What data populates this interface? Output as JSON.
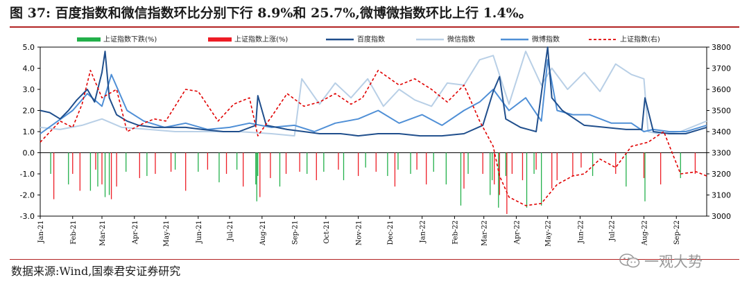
{
  "figure": {
    "title": "图 37:  百度指数和微信指数环比分别下行 8.9%和 25.7%,微博微指数环比上行 1.4%。",
    "source": "数据来源:Wind,国泰君安证券研究",
    "watermark": "一观大势",
    "watermark_icon": "wechat-bubble-icon"
  },
  "colors": {
    "title_rule": "#b22222",
    "bar_down": "#22b04a",
    "bar_up": "#ee1c25",
    "baidu": "#1f4e8c",
    "weixin": "#b8cfe6",
    "weibo": "#4f8fd6",
    "sh_index": "#e00000"
  },
  "chart_data": {
    "type": "line",
    "x_range": [
      "2021-01-01",
      "2022-09-30"
    ],
    "x_tick_labels": [
      "Jan-21",
      "Feb-21",
      "Mar-21",
      "Apr-21",
      "May-21",
      "Jun-21",
      "Jul-21",
      "Aug-21",
      "Sep-21",
      "Oct-21",
      "Nov-21",
      "Dec-21",
      "Jan-22",
      "Feb-22",
      "Mar-22",
      "Apr-22",
      "May-22",
      "Jun-22",
      "Jul-22",
      "Aug-22",
      "Sep-22"
    ],
    "y_left": {
      "min": -3.0,
      "max": 5.0,
      "ticks": [
        "-3.0",
        "-2.0",
        "-1.0",
        "0.0",
        "1.0",
        "2.0",
        "3.0",
        "4.0",
        "5.0"
      ]
    },
    "y_right": {
      "min": 3000,
      "max": 3800,
      "ticks": [
        "3000",
        "3100",
        "3200",
        "3300",
        "3400",
        "3500",
        "3600",
        "3700",
        "3800"
      ]
    },
    "legend": {
      "placement": "top",
      "entries": [
        "上证指数下跌(%)",
        "上证指数上涨(%)",
        "百度指数",
        "微信指数",
        "微博指数",
        "上证指数(右)"
      ]
    },
    "series": [
      {
        "name": "上证指数下跌(%)",
        "type": "bar",
        "axis": "left",
        "x": [
          "2021-01-11",
          "2021-01-28",
          "2021-02-18",
          "2021-02-25",
          "2021-03-04",
          "2021-03-08",
          "2021-03-24",
          "2021-04-13",
          "2021-05-10",
          "2021-06-01",
          "2021-06-21",
          "2021-07-08",
          "2021-07-26",
          "2021-07-27",
          "2021-07-28",
          "2021-08-18",
          "2021-09-13",
          "2021-09-29",
          "2021-10-18",
          "2021-11-08",
          "2021-11-29",
          "2021-12-09",
          "2021-12-21",
          "2022-01-12",
          "2022-01-24",
          "2022-02-07",
          "2022-02-14",
          "2022-03-07",
          "2022-03-09",
          "2022-03-15",
          "2022-03-22",
          "2022-04-11",
          "2022-04-18",
          "2022-04-25",
          "2022-06-13",
          "2022-07-15",
          "2022-08-02",
          "2022-09-05"
        ],
        "values": [
          -1.0,
          -1.5,
          -1.8,
          -1.6,
          -2.1,
          -2.0,
          -0.9,
          -1.1,
          -0.8,
          -0.9,
          -1.4,
          -0.8,
          -1.5,
          -2.3,
          -1.1,
          -1.6,
          -1.0,
          -0.9,
          -1.3,
          -0.7,
          -1.1,
          -0.8,
          -1.0,
          -0.9,
          -1.5,
          -2.5,
          -1.0,
          -2.0,
          -1.3,
          -2.6,
          -1.1,
          -2.6,
          -1.0,
          -2.5,
          -1.1,
          -1.6,
          -2.3,
          -1.2
        ]
      },
      {
        "name": "上证指数上涨(%)",
        "type": "bar",
        "axis": "left",
        "x": [
          "2021-01-14",
          "2021-02-01",
          "2021-02-08",
          "2021-02-23",
          "2021-03-01",
          "2021-03-10",
          "2021-03-15",
          "2021-04-06",
          "2021-04-21",
          "2021-05-06",
          "2021-05-20",
          "2021-06-10",
          "2021-06-28",
          "2021-07-14",
          "2021-07-30",
          "2021-08-09",
          "2021-08-24",
          "2021-09-06",
          "2021-09-22",
          "2021-10-13",
          "2021-11-01",
          "2021-11-18",
          "2021-12-06",
          "2021-12-27",
          "2022-01-05",
          "2022-02-10",
          "2022-02-28",
          "2022-03-11",
          "2022-03-16",
          "2022-03-23",
          "2022-03-28",
          "2022-04-07",
          "2022-04-20",
          "2022-05-05",
          "2022-05-10",
          "2022-05-25",
          "2022-06-02",
          "2022-07-05",
          "2022-08-01",
          "2022-08-17",
          "2022-09-19"
        ],
        "values": [
          -2.2,
          -1.0,
          -1.8,
          -0.8,
          -1.5,
          -2.2,
          -1.6,
          -1.2,
          -1.0,
          -0.9,
          -1.8,
          -0.8,
          -1.0,
          -1.6,
          -2.1,
          -1.2,
          -1.0,
          -0.9,
          -1.3,
          -0.8,
          -1.1,
          -0.9,
          -1.6,
          -0.8,
          -1.5,
          -1.7,
          -1.0,
          -1.5,
          -2.0,
          -2.9,
          -1.0,
          -1.3,
          -0.8,
          -1.7,
          -1.3,
          -1.1,
          -0.7,
          -1.0,
          -1.2,
          -1.5,
          -1.0
        ]
      },
      {
        "name": "百度指数",
        "axis": "left",
        "x": [
          "2021-01-01",
          "2021-01-10",
          "2021-01-20",
          "2021-01-28",
          "2021-02-05",
          "2021-02-15",
          "2021-02-22",
          "2021-03-01",
          "2021-03-04",
          "2021-03-08",
          "2021-03-15",
          "2021-03-25",
          "2021-04-05",
          "2021-04-20",
          "2021-05-05",
          "2021-05-20",
          "2021-06-05",
          "2021-06-25",
          "2021-07-10",
          "2021-07-26",
          "2021-07-28",
          "2021-08-05",
          "2021-08-25",
          "2021-09-10",
          "2021-09-25",
          "2021-10-15",
          "2021-11-01",
          "2021-11-20",
          "2021-12-10",
          "2021-12-30",
          "2022-01-20",
          "2022-02-10",
          "2022-02-28",
          "2022-03-10",
          "2022-03-16",
          "2022-03-22",
          "2022-04-05",
          "2022-04-20",
          "2022-05-01",
          "2022-05-05",
          "2022-05-15",
          "2022-06-05",
          "2022-06-25",
          "2022-07-15",
          "2022-07-30",
          "2022-08-02",
          "2022-08-10",
          "2022-08-25",
          "2022-09-10",
          "2022-09-30"
        ],
        "values": [
          2.0,
          1.9,
          1.6,
          2.0,
          2.5,
          3.0,
          2.4,
          3.8,
          4.8,
          2.6,
          1.8,
          1.5,
          1.3,
          1.2,
          1.2,
          1.2,
          1.1,
          1.0,
          1.0,
          1.3,
          2.7,
          1.3,
          1.1,
          1.0,
          0.9,
          0.9,
          0.8,
          0.9,
          0.9,
          0.8,
          0.8,
          0.9,
          1.3,
          2.9,
          3.6,
          1.6,
          1.2,
          1.0,
          5.0,
          2.6,
          2.0,
          1.3,
          1.2,
          1.1,
          1.1,
          2.6,
          1.0,
          0.9,
          0.9,
          1.2
        ]
      },
      {
        "name": "微信指数",
        "axis": "left",
        "x": [
          "2021-01-01",
          "2021-01-20",
          "2021-02-10",
          "2021-03-01",
          "2021-03-20",
          "2021-04-15",
          "2021-05-10",
          "2021-06-10",
          "2021-07-10",
          "2021-08-10",
          "2021-09-01",
          "2021-09-08",
          "2021-09-25",
          "2021-10-10",
          "2021-10-25",
          "2021-11-10",
          "2021-11-25",
          "2021-12-10",
          "2021-12-25",
          "2022-01-10",
          "2022-01-25",
          "2022-02-10",
          "2022-02-25",
          "2022-03-10",
          "2022-03-25",
          "2022-04-10",
          "2022-04-25",
          "2022-05-05",
          "2022-05-20",
          "2022-06-05",
          "2022-06-20",
          "2022-07-05",
          "2022-07-20",
          "2022-08-01",
          "2022-08-05",
          "2022-08-15",
          "2022-09-05",
          "2022-09-30"
        ],
        "values": [
          1.2,
          1.1,
          1.3,
          1.6,
          1.2,
          1.1,
          1.0,
          1.0,
          1.0,
          0.9,
          0.8,
          3.5,
          2.3,
          3.3,
          2.6,
          3.5,
          2.2,
          3.0,
          2.5,
          2.2,
          3.3,
          3.2,
          4.4,
          4.6,
          2.3,
          4.8,
          3.2,
          4.0,
          3.0,
          3.8,
          2.9,
          4.2,
          3.7,
          3.5,
          1.0,
          0.9,
          1.0,
          1.5
        ]
      },
      {
        "name": "微博指数",
        "axis": "left",
        "x": [
          "2021-01-01",
          "2021-01-15",
          "2021-02-01",
          "2021-02-15",
          "2021-03-01",
          "2021-03-10",
          "2021-03-25",
          "2021-04-10",
          "2021-04-30",
          "2021-05-20",
          "2021-06-10",
          "2021-07-01",
          "2021-07-20",
          "2021-08-10",
          "2021-09-01",
          "2021-09-20",
          "2021-10-10",
          "2021-11-01",
          "2021-11-20",
          "2021-12-10",
          "2022-01-01",
          "2022-01-20",
          "2022-02-10",
          "2022-02-25",
          "2022-03-10",
          "2022-03-25",
          "2022-04-10",
          "2022-04-25",
          "2022-05-01",
          "2022-05-10",
          "2022-05-25",
          "2022-06-10",
          "2022-07-01",
          "2022-07-20",
          "2022-08-01",
          "2022-08-10",
          "2022-08-25",
          "2022-09-10",
          "2022-09-30"
        ],
        "values": [
          0.9,
          1.4,
          2.0,
          2.8,
          2.2,
          3.7,
          2.0,
          1.5,
          1.2,
          1.4,
          1.1,
          1.2,
          1.4,
          1.2,
          1.3,
          1.0,
          1.4,
          1.6,
          2.0,
          1.4,
          1.8,
          1.3,
          2.0,
          2.4,
          3.0,
          2.0,
          2.6,
          1.5,
          4.4,
          2.0,
          1.8,
          1.8,
          1.4,
          1.4,
          1.0,
          1.1,
          1.0,
          1.0,
          1.3
        ]
      },
      {
        "name": "上证指数(右)",
        "axis": "right",
        "x": [
          "2021-01-01",
          "2021-01-20",
          "2021-02-01",
          "2021-02-10",
          "2021-02-18",
          "2021-03-01",
          "2021-03-15",
          "2021-03-25",
          "2021-04-10",
          "2021-04-20",
          "2021-05-01",
          "2021-05-20",
          "2021-06-01",
          "2021-06-20",
          "2021-07-05",
          "2021-07-20",
          "2021-07-28",
          "2021-08-10",
          "2021-08-25",
          "2021-09-10",
          "2021-09-25",
          "2021-10-10",
          "2021-10-25",
          "2021-11-05",
          "2021-11-20",
          "2021-12-10",
          "2021-12-25",
          "2022-01-10",
          "2022-01-25",
          "2022-02-10",
          "2022-02-25",
          "2022-03-10",
          "2022-03-16",
          "2022-03-25",
          "2022-04-10",
          "2022-04-25",
          "2022-05-10",
          "2022-05-25",
          "2022-06-05",
          "2022-06-20",
          "2022-07-05",
          "2022-07-20",
          "2022-08-05",
          "2022-08-20",
          "2022-09-05",
          "2022-09-20",
          "2022-09-30"
        ],
        "values": [
          3350,
          3450,
          3420,
          3530,
          3690,
          3560,
          3600,
          3400,
          3440,
          3460,
          3450,
          3600,
          3590,
          3450,
          3530,
          3560,
          3380,
          3470,
          3580,
          3520,
          3540,
          3580,
          3530,
          3560,
          3690,
          3620,
          3650,
          3600,
          3540,
          3620,
          3450,
          3330,
          3190,
          3090,
          3050,
          3060,
          3150,
          3190,
          3200,
          3270,
          3230,
          3330,
          3350,
          3400,
          3200,
          3210,
          3190
        ]
      }
    ]
  }
}
